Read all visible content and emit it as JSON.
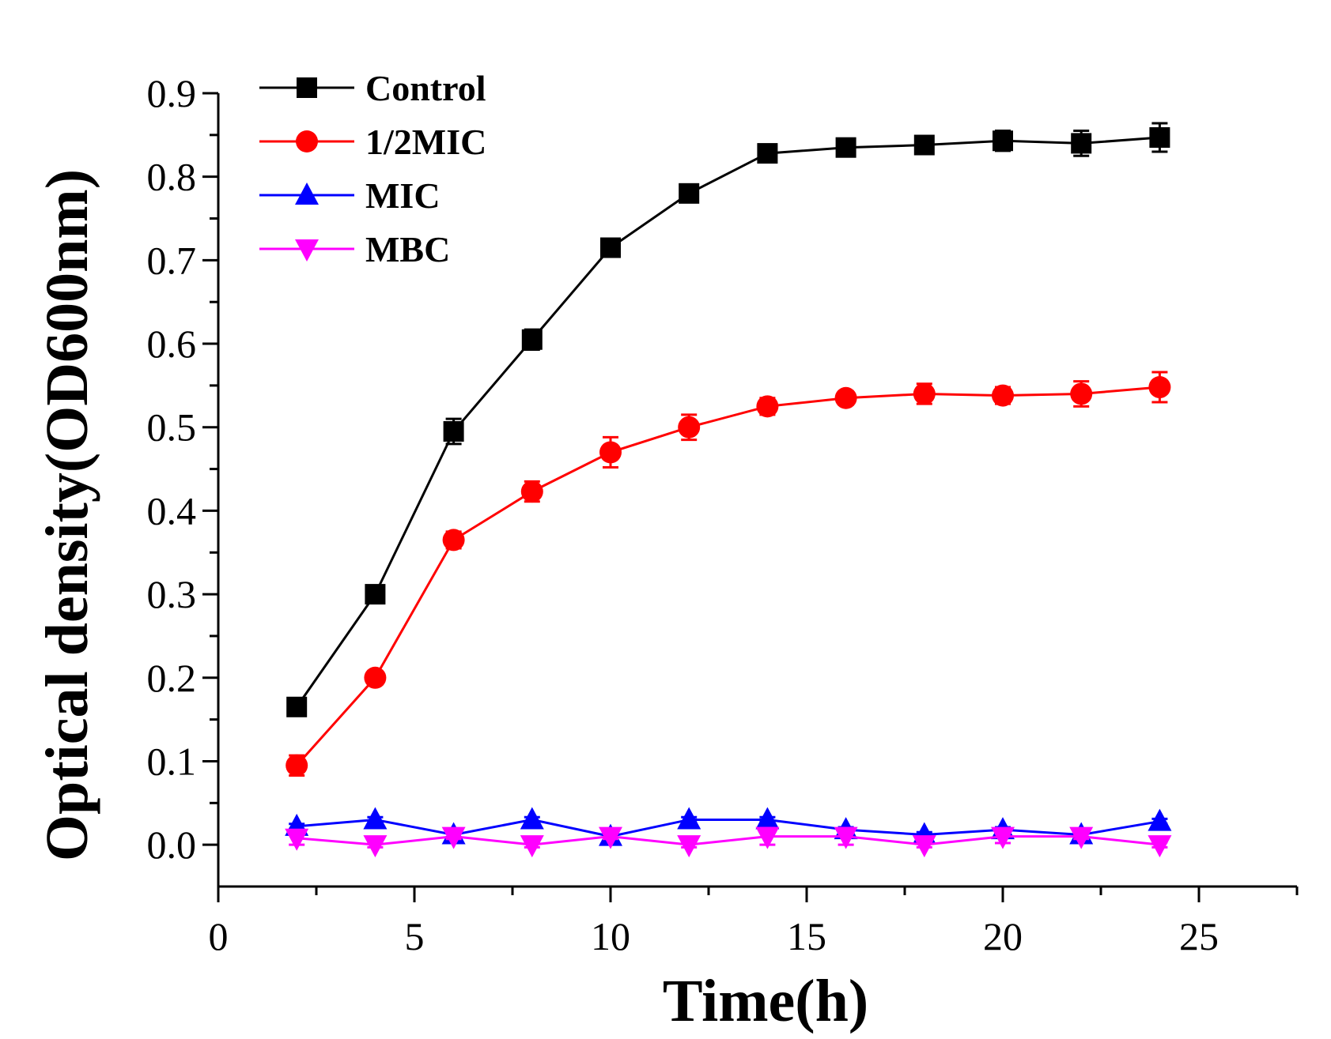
{
  "chart_data": {
    "type": "line",
    "title": "",
    "xlabel": "Time(h)",
    "ylabel": "Optical density(OD600nm)",
    "xlim": [
      0,
      27.5
    ],
    "ylim": [
      -0.05,
      0.9
    ],
    "xticks": [
      0,
      5,
      10,
      15,
      20,
      25
    ],
    "xtick_labels": [
      "0",
      "5",
      "10",
      "15",
      "20",
      "25"
    ],
    "yticks": [
      0.0,
      0.1,
      0.2,
      0.3,
      0.4,
      0.5,
      0.6,
      0.7,
      0.8,
      0.9
    ],
    "ytick_labels": [
      "0.0",
      "0.1",
      "0.2",
      "0.3",
      "0.4",
      "0.5",
      "0.6",
      "0.7",
      "0.8",
      "0.9"
    ],
    "grid": false,
    "legend_position": "top-left",
    "x": [
      2,
      4,
      6,
      8,
      10,
      12,
      14,
      16,
      18,
      20,
      22,
      24
    ],
    "series": [
      {
        "name": "Control",
        "color": "#000000",
        "marker": "square",
        "values": [
          0.165,
          0.3,
          0.495,
          0.605,
          0.715,
          0.78,
          0.828,
          0.835,
          0.838,
          0.843,
          0.84,
          0.847
        ],
        "errors": [
          0.005,
          0.007,
          0.015,
          0.012,
          0.008,
          0.01,
          0.005,
          0.005,
          0.006,
          0.012,
          0.015,
          0.017
        ]
      },
      {
        "name": "1/2MIC",
        "color": "#ff0000",
        "marker": "circle",
        "values": [
          0.095,
          0.2,
          0.365,
          0.423,
          0.47,
          0.5,
          0.525,
          0.535,
          0.54,
          0.538,
          0.54,
          0.548
        ],
        "errors": [
          0.012,
          0.008,
          0.01,
          0.012,
          0.018,
          0.015,
          0.01,
          0.008,
          0.012,
          0.01,
          0.015,
          0.018
        ]
      },
      {
        "name": "MIC",
        "color": "#0000ff",
        "marker": "triangle-up",
        "values": [
          0.022,
          0.03,
          0.012,
          0.03,
          0.01,
          0.03,
          0.03,
          0.018,
          0.012,
          0.018,
          0.012,
          0.028
        ],
        "errors": [
          0.003,
          0.003,
          0.003,
          0.003,
          0.003,
          0.003,
          0.003,
          0.003,
          0.003,
          0.003,
          0.003,
          0.003
        ]
      },
      {
        "name": "MBC",
        "color": "#ff00ff",
        "marker": "triangle-down",
        "values": [
          0.008,
          0.0,
          0.01,
          0.0,
          0.01,
          0.0,
          0.01,
          0.01,
          0.0,
          0.01,
          0.01,
          0.0
        ],
        "errors": [
          0.008,
          0.003,
          0.003,
          0.003,
          0.003,
          0.003,
          0.01,
          0.01,
          0.003,
          0.008,
          0.003,
          0.003
        ]
      }
    ]
  }
}
